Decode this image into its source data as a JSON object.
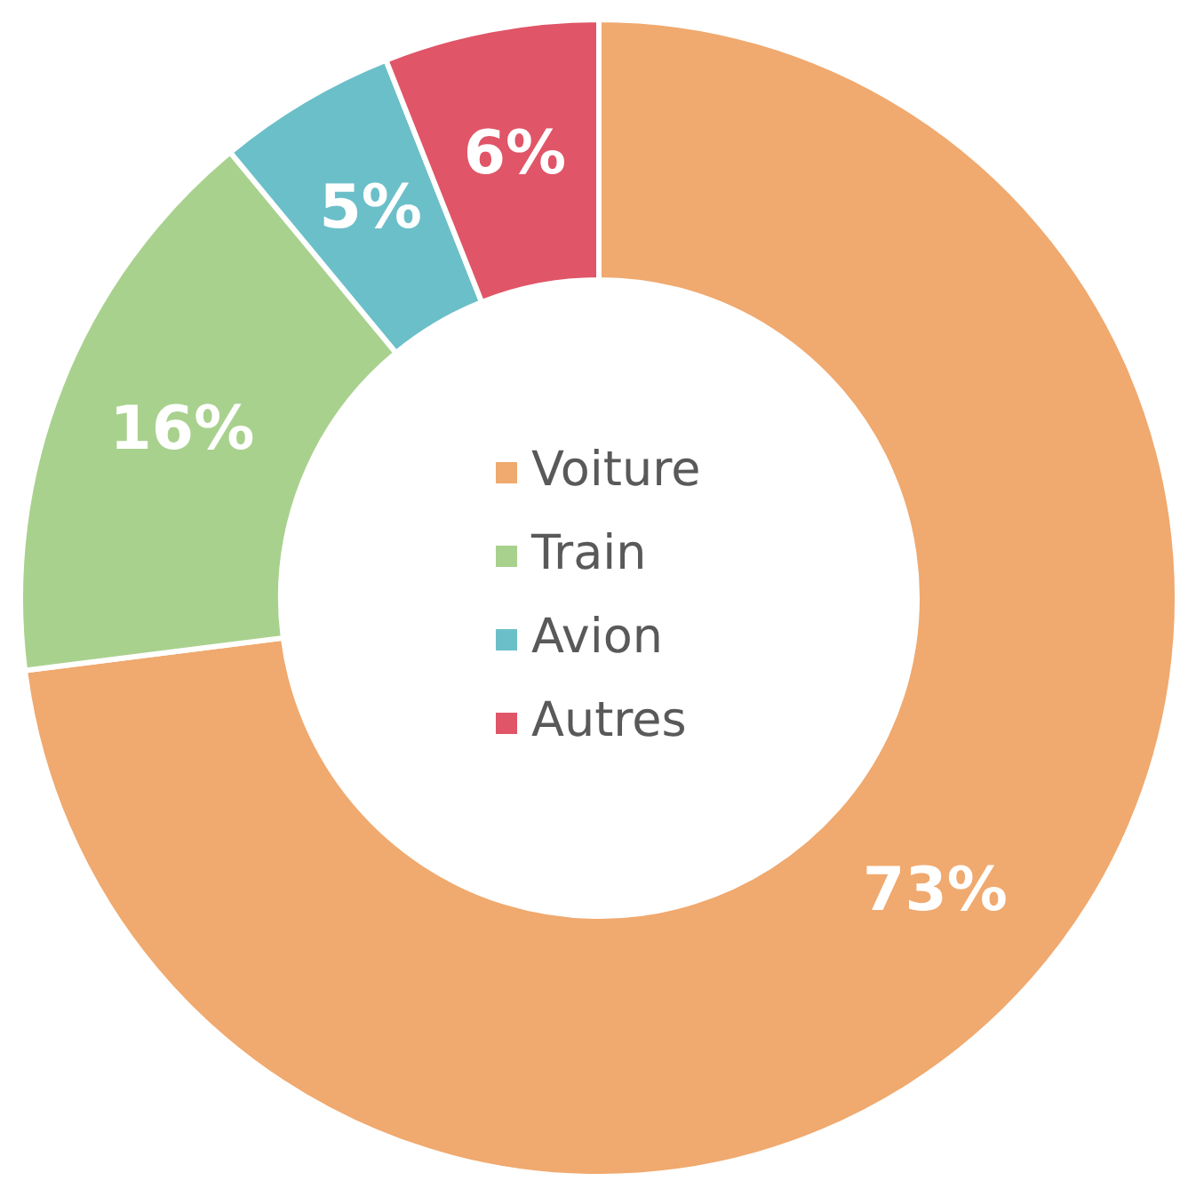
{
  "chart_data": {
    "type": "donut",
    "categories": [
      "Voiture",
      "Train",
      "Avion",
      "Autres"
    ],
    "values": [
      73,
      16,
      5,
      6
    ],
    "colors": [
      "#f0a96e",
      "#a9d18e",
      "#6bbfc9",
      "#e05567"
    ],
    "value_labels": [
      "73%",
      "16%",
      "5%",
      "6%"
    ],
    "legend": "center"
  }
}
